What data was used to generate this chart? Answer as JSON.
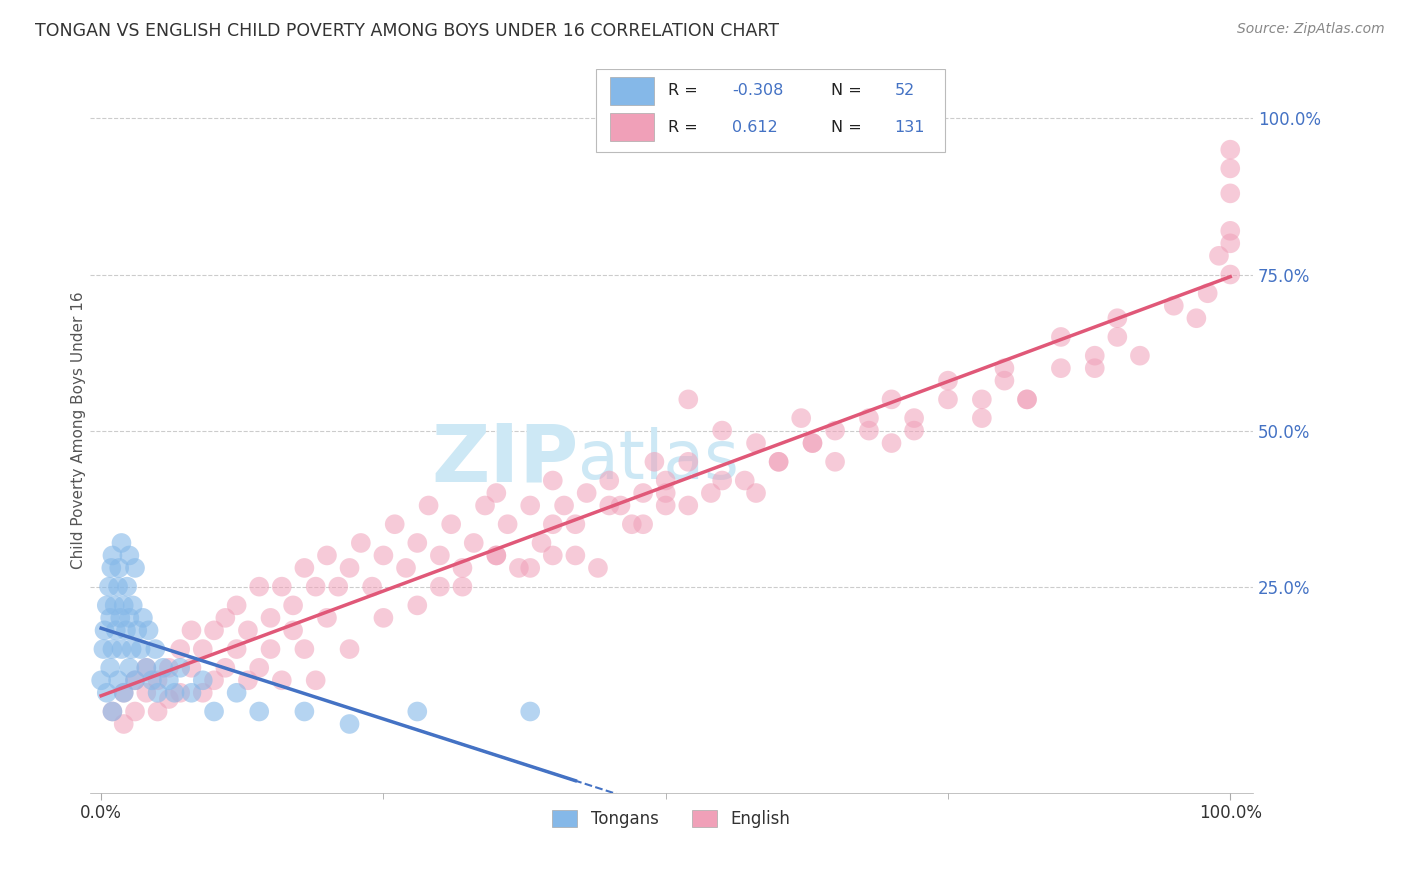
{
  "title": "TONGAN VS ENGLISH CHILD POVERTY AMONG BOYS UNDER 16 CORRELATION CHART",
  "source": "Source: ZipAtlas.com",
  "ylabel": "Child Poverty Among Boys Under 16",
  "legend_label1": "Tongans",
  "legend_label2": "English",
  "R1": -0.308,
  "N1": 52,
  "R2": 0.612,
  "N2": 131,
  "color_blue": "#85b8e8",
  "color_pink": "#f0a0b8",
  "color_blue_line": "#4472c4",
  "color_pink_line": "#e05878",
  "background_color": "#ffffff",
  "watermark_color": "#cde8f5",
  "blue_x": [
    0.0,
    0.002,
    0.003,
    0.005,
    0.005,
    0.007,
    0.008,
    0.008,
    0.009,
    0.01,
    0.01,
    0.01,
    0.012,
    0.013,
    0.015,
    0.015,
    0.016,
    0.017,
    0.018,
    0.018,
    0.02,
    0.02,
    0.022,
    0.023,
    0.025,
    0.025,
    0.025,
    0.027,
    0.028,
    0.03,
    0.03,
    0.032,
    0.035,
    0.037,
    0.04,
    0.042,
    0.045,
    0.048,
    0.05,
    0.055,
    0.06,
    0.065,
    0.07,
    0.08,
    0.09,
    0.1,
    0.12,
    0.14,
    0.18,
    0.22,
    0.28,
    0.38
  ],
  "blue_y": [
    0.1,
    0.15,
    0.18,
    0.22,
    0.08,
    0.25,
    0.12,
    0.2,
    0.28,
    0.15,
    0.3,
    0.05,
    0.22,
    0.18,
    0.25,
    0.1,
    0.28,
    0.2,
    0.15,
    0.32,
    0.22,
    0.08,
    0.18,
    0.25,
    0.12,
    0.2,
    0.3,
    0.15,
    0.22,
    0.1,
    0.28,
    0.18,
    0.15,
    0.2,
    0.12,
    0.18,
    0.1,
    0.15,
    0.08,
    0.12,
    0.1,
    0.08,
    0.12,
    0.08,
    0.1,
    0.05,
    0.08,
    0.05,
    0.05,
    0.03,
    0.05,
    0.05
  ],
  "pink_x": [
    0.01,
    0.02,
    0.02,
    0.03,
    0.03,
    0.04,
    0.04,
    0.05,
    0.05,
    0.06,
    0.06,
    0.07,
    0.07,
    0.08,
    0.08,
    0.09,
    0.09,
    0.1,
    0.1,
    0.11,
    0.11,
    0.12,
    0.12,
    0.13,
    0.13,
    0.14,
    0.14,
    0.15,
    0.15,
    0.16,
    0.16,
    0.17,
    0.17,
    0.18,
    0.18,
    0.19,
    0.19,
    0.2,
    0.2,
    0.21,
    0.22,
    0.22,
    0.23,
    0.24,
    0.25,
    0.25,
    0.26,
    0.27,
    0.28,
    0.28,
    0.29,
    0.3,
    0.3,
    0.31,
    0.32,
    0.33,
    0.34,
    0.35,
    0.35,
    0.36,
    0.37,
    0.38,
    0.39,
    0.4,
    0.4,
    0.41,
    0.42,
    0.43,
    0.44,
    0.45,
    0.46,
    0.47,
    0.48,
    0.49,
    0.5,
    0.5,
    0.52,
    0.54,
    0.55,
    0.57,
    0.58,
    0.6,
    0.62,
    0.63,
    0.65,
    0.68,
    0.7,
    0.72,
    0.75,
    0.78,
    0.8,
    0.82,
    0.85,
    0.88,
    0.9,
    0.92,
    0.95,
    0.97,
    0.98,
    0.99,
    1.0,
    1.0,
    1.0,
    1.0,
    1.0,
    1.0,
    0.32,
    0.35,
    0.38,
    0.4,
    0.42,
    0.45,
    0.48,
    0.5,
    0.52,
    0.55,
    0.58,
    0.6,
    0.63,
    0.65,
    0.68,
    0.7,
    0.72,
    0.75,
    0.78,
    0.8,
    0.82,
    0.85,
    0.88,
    0.9,
    0.52
  ],
  "pink_y": [
    0.05,
    0.08,
    0.03,
    0.1,
    0.05,
    0.08,
    0.12,
    0.1,
    0.05,
    0.12,
    0.07,
    0.15,
    0.08,
    0.12,
    0.18,
    0.15,
    0.08,
    0.18,
    0.1,
    0.2,
    0.12,
    0.15,
    0.22,
    0.18,
    0.1,
    0.25,
    0.12,
    0.2,
    0.15,
    0.25,
    0.1,
    0.22,
    0.18,
    0.28,
    0.15,
    0.25,
    0.1,
    0.3,
    0.2,
    0.25,
    0.28,
    0.15,
    0.32,
    0.25,
    0.3,
    0.2,
    0.35,
    0.28,
    0.32,
    0.22,
    0.38,
    0.3,
    0.25,
    0.35,
    0.28,
    0.32,
    0.38,
    0.3,
    0.4,
    0.35,
    0.28,
    0.38,
    0.32,
    0.42,
    0.3,
    0.38,
    0.35,
    0.4,
    0.28,
    0.42,
    0.38,
    0.35,
    0.4,
    0.45,
    0.38,
    0.42,
    0.45,
    0.4,
    0.5,
    0.42,
    0.48,
    0.45,
    0.52,
    0.48,
    0.5,
    0.52,
    0.55,
    0.5,
    0.58,
    0.55,
    0.6,
    0.55,
    0.65,
    0.6,
    0.68,
    0.62,
    0.7,
    0.68,
    0.72,
    0.78,
    0.8,
    0.75,
    0.82,
    0.88,
    0.92,
    0.95,
    0.25,
    0.3,
    0.28,
    0.35,
    0.3,
    0.38,
    0.35,
    0.4,
    0.38,
    0.42,
    0.4,
    0.45,
    0.48,
    0.45,
    0.5,
    0.48,
    0.52,
    0.55,
    0.52,
    0.58,
    0.55,
    0.6,
    0.62,
    0.65,
    0.55
  ]
}
